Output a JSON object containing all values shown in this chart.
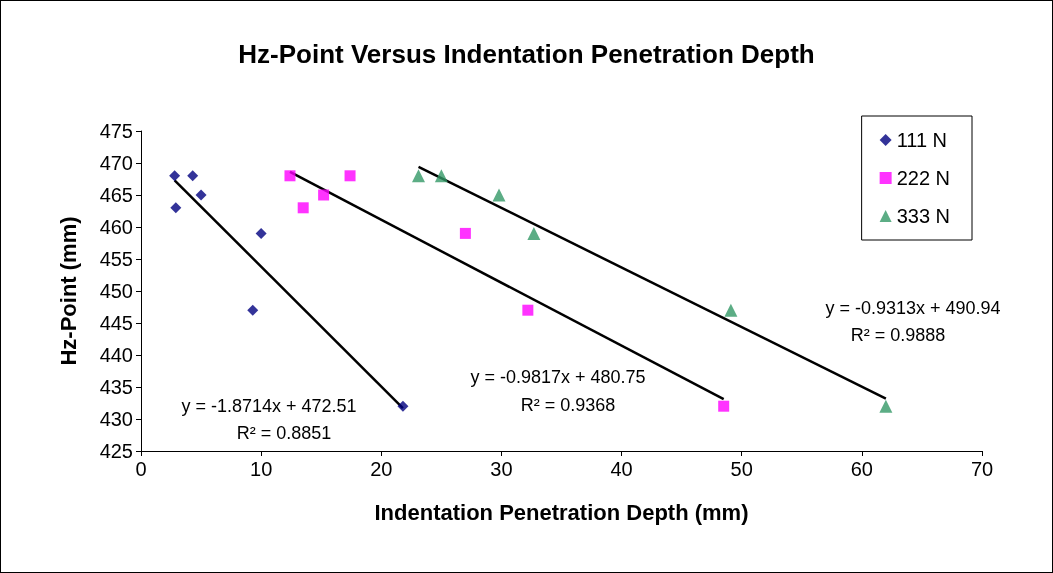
{
  "chart_data": {
    "type": "scatter",
    "title": "Hz-Point Versus Indentation Penetration Depth",
    "xlabel": "Indentation Penetration Depth (mm)",
    "ylabel": "Hz-Point (mm)",
    "xlim": [
      0,
      70
    ],
    "xticks": [
      0,
      10,
      20,
      30,
      40,
      50,
      60,
      70
    ],
    "ylim": [
      425,
      475
    ],
    "yticks": [
      425,
      430,
      435,
      440,
      445,
      450,
      455,
      460,
      465,
      470,
      475
    ],
    "grid": false,
    "legend": "top right",
    "series": [
      {
        "name": "111 N",
        "color": "#000080",
        "marker": "diamond",
        "x": [
          2.8,
          4.3,
          2.9,
          5.0,
          10.0,
          9.3,
          21.8
        ],
        "values": [
          468,
          468,
          463,
          465,
          459,
          447,
          432
        ]
      },
      {
        "name": "222 N",
        "color": "#ff00ff",
        "marker": "square",
        "x": [
          12.4,
          13.5,
          15.2,
          17.4,
          27.0,
          32.2,
          48.5
        ],
        "values": [
          468,
          463,
          465,
          468,
          459,
          447,
          432
        ]
      },
      {
        "name": "333 N",
        "color": "#339966",
        "marker": "triangle",
        "x": [
          23.1,
          25.0,
          29.8,
          32.7,
          49.1,
          62.0
        ],
        "values": [
          468,
          468,
          465,
          459,
          447,
          432
        ]
      },
      {
        "type": "line",
        "color": "#000000",
        "marker": "none",
        "x": [
          2.8,
          21.8
        ],
        "values": [
          467.3,
          431.7
        ]
      },
      {
        "type": "line",
        "color": "#000000",
        "marker": "none",
        "x": [
          12.4,
          48.5
        ],
        "values": [
          468.6,
          433.1
        ]
      },
      {
        "type": "line",
        "color": "#000000",
        "marker": "none",
        "x": [
          23.1,
          62.0
        ],
        "values": [
          469.4,
          433.2
        ]
      }
    ],
    "annotations": [
      "y = -1.8714x + 472.51",
      "R² = 0.8851",
      "y = -0.9817x + 480.75",
      "R² = 0.9368",
      "y = -0.9313x + 490.94",
      "R² = 0.9888"
    ]
  }
}
